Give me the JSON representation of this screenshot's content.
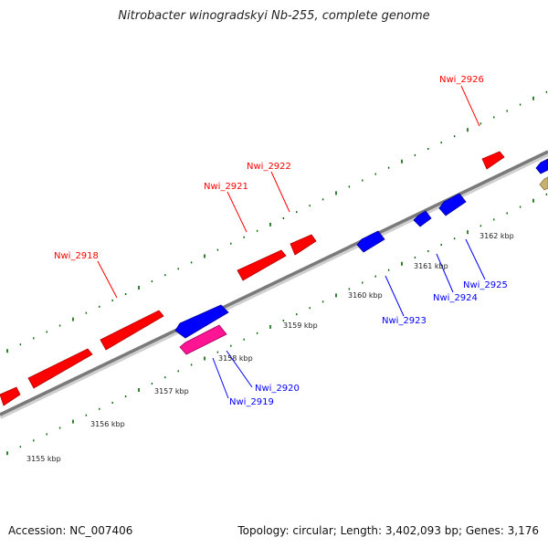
{
  "title": "Nitrobacter winogradskyi Nb-255, complete genome",
  "footer": {
    "accession": "Accession: NC_007406",
    "summary": "Topology: circular; Length: 3,402,093 bp; Genes: 3,176"
  },
  "colors": {
    "forward_gene": "#ff0000",
    "reverse_gene": "#0000ff",
    "pink_gene": "#ff1493",
    "olive_gene": "#c8b070",
    "tick": "#006400",
    "backbone": "#888888"
  },
  "scale_labels": [
    "3155 kbp",
    "3156 kbp",
    "3157 kbp",
    "3158 kbp",
    "3159 kbp",
    "3160 kbp",
    "3161 kbp",
    "3162 kbp"
  ],
  "gene_labels": {
    "forward": [
      "Nwi_2918",
      "Nwi_2921",
      "Nwi_2922",
      "Nwi_2926"
    ],
    "reverse": [
      "Nwi_2919",
      "Nwi_2920",
      "Nwi_2923",
      "Nwi_2924",
      "Nwi_2925"
    ]
  }
}
